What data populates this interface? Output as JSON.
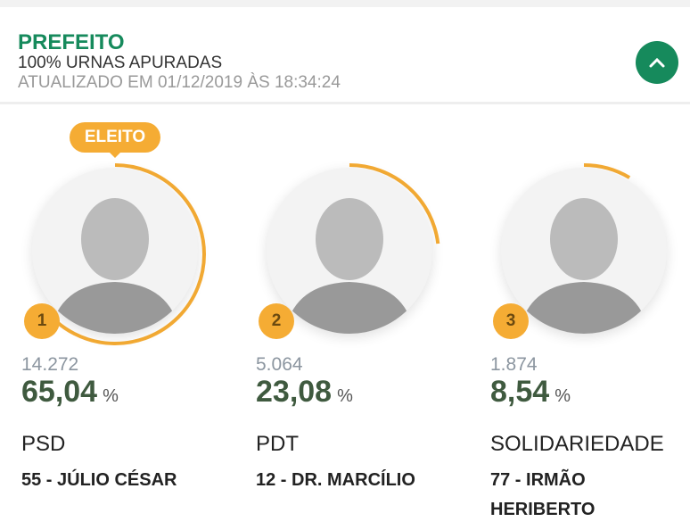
{
  "header": {
    "title": "PREFEITO",
    "urnas": "100% URNAS APURADAS",
    "updated": "ATUALIZADO EM 01/12/2019 ÀS 18:34:24",
    "toggle_icon": "chevron-up-icon"
  },
  "accent": "#f5ac34",
  "brand": "#168a5c",
  "candidates": [
    {
      "rank": "1",
      "badge": "ELEITO",
      "votes": "14.272",
      "percent": "65,04",
      "percent_value": 65.04,
      "pct_sign": "%",
      "party": "PSD",
      "name": "55 - JÚLIO CÉSAR"
    },
    {
      "rank": "2",
      "votes": "5.064",
      "percent": "23,08",
      "percent_value": 23.08,
      "pct_sign": "%",
      "party": "PDT",
      "name": "12 - DR. MARCÍLIO"
    },
    {
      "rank": "3",
      "votes": "1.874",
      "percent": "8,54",
      "percent_value": 8.54,
      "pct_sign": "%",
      "party": "SOLIDARIEDADE",
      "name": "77 - IRMÃO HERIBERTO"
    }
  ]
}
